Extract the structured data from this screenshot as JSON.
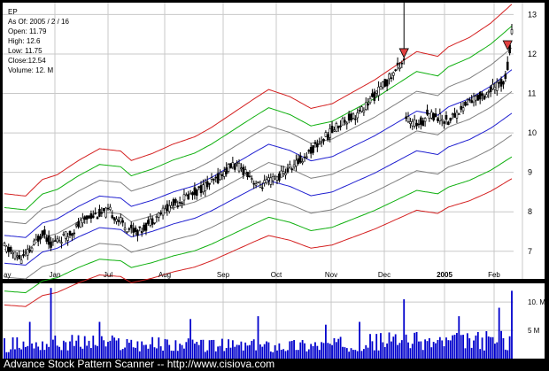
{
  "info": {
    "symbol": "EP",
    "as_of": "As Of: 2005 / 2 / 16",
    "open": "Open: 11.79",
    "high": "High: 12.6",
    "low": "Low: 11.75",
    "close": "Close:12.54",
    "volume": "Volume: 12. M"
  },
  "footer": "Advance Stock Pattern Scanner -- http://www.cisiova.com",
  "colors": {
    "background": "#000000",
    "panel": "#ffffff",
    "grid": "#c8c8c8",
    "candle": "#000000",
    "volume": "#0000cc",
    "band_outer": "#d42020",
    "band_mid": "#10b010",
    "band_inner": "#808080",
    "band_core": "#2020d0",
    "marker": "#e04040"
  },
  "chart_data": {
    "type": "candlestick",
    "symbol": "EP",
    "y_ticks": [
      "7",
      "8",
      "9",
      "10",
      "11",
      "12",
      "13"
    ],
    "ylim": [
      6.3,
      13.3
    ],
    "x_labels": [
      "Jan",
      "Jul",
      "Aug",
      "Sep",
      "Oct",
      "Nov",
      "Dec",
      "2005",
      "Feb"
    ],
    "x_partial_label": "ay",
    "volume_ticks": [
      "10. M",
      "5 M"
    ],
    "volume_ylim": [
      0,
      13
    ],
    "band_offsets_pct": [
      -20,
      -15,
      -10,
      -5,
      0,
      5,
      10,
      15,
      20
    ],
    "bands_center_curve": {
      "x": [
        0,
        10,
        18,
        25,
        35,
        45,
        55,
        60,
        70,
        80,
        90,
        98,
        108,
        118,
        125,
        135,
        145,
        155,
        165,
        175,
        185,
        195,
        205,
        210,
        220,
        230,
        240
      ],
      "y": [
        7.05,
        7.0,
        7.35,
        7.45,
        7.75,
        8.0,
        7.95,
        7.75,
        7.9,
        8.1,
        8.25,
        8.45,
        8.75,
        9.05,
        9.25,
        9.1,
        8.85,
        8.95,
        9.2,
        9.45,
        9.75,
        10.05,
        9.95,
        10.15,
        10.35,
        10.65,
        11.05
      ]
    },
    "price_path": {
      "x": [
        0,
        8,
        12,
        18,
        22,
        30,
        40,
        50,
        58,
        64,
        72,
        80,
        90,
        100,
        108,
        115,
        120,
        125,
        130,
        140,
        150,
        160,
        168,
        176,
        184,
        189,
        190,
        193,
        198,
        200,
        210,
        215,
        220,
        228,
        236,
        238,
        240
      ],
      "y": [
        7.1,
        6.8,
        7.0,
        7.5,
        7.2,
        7.4,
        7.9,
        8.0,
        7.6,
        7.5,
        7.9,
        8.2,
        8.5,
        8.8,
        9.2,
        9.0,
        8.65,
        8.75,
        8.9,
        9.3,
        9.8,
        10.3,
        10.5,
        11.0,
        11.5,
        11.9,
        10.4,
        10.2,
        10.3,
        10.5,
        10.3,
        10.55,
        10.8,
        11.0,
        11.3,
        11.7,
        12.54
      ]
    },
    "volume_path": {
      "x": [
        0,
        40,
        80,
        120,
        160,
        189,
        200,
        240
      ],
      "y": [
        2.2,
        2.6,
        2.2,
        2.0,
        2.3,
        3.0,
        2.6,
        3.0
      ]
    },
    "volume_spikes": [
      {
        "x": 12,
        "value": 6.5
      },
      {
        "x": 22,
        "value": 12.5
      },
      {
        "x": 45,
        "value": 6.5
      },
      {
        "x": 88,
        "value": 7.0
      },
      {
        "x": 120,
        "value": 7.5
      },
      {
        "x": 152,
        "value": 6.0
      },
      {
        "x": 168,
        "value": 6.5
      },
      {
        "x": 189,
        "value": 10.5
      },
      {
        "x": 215,
        "value": 7.5
      },
      {
        "x": 234,
        "value": 9.0
      },
      {
        "x": 240,
        "value": 12.0
      }
    ],
    "bar_count": 241,
    "markers": [
      {
        "type": "triangle-down",
        "x": 189,
        "y": 12.0
      },
      {
        "type": "triangle-down",
        "x": 238,
        "y": 12.2
      }
    ]
  }
}
